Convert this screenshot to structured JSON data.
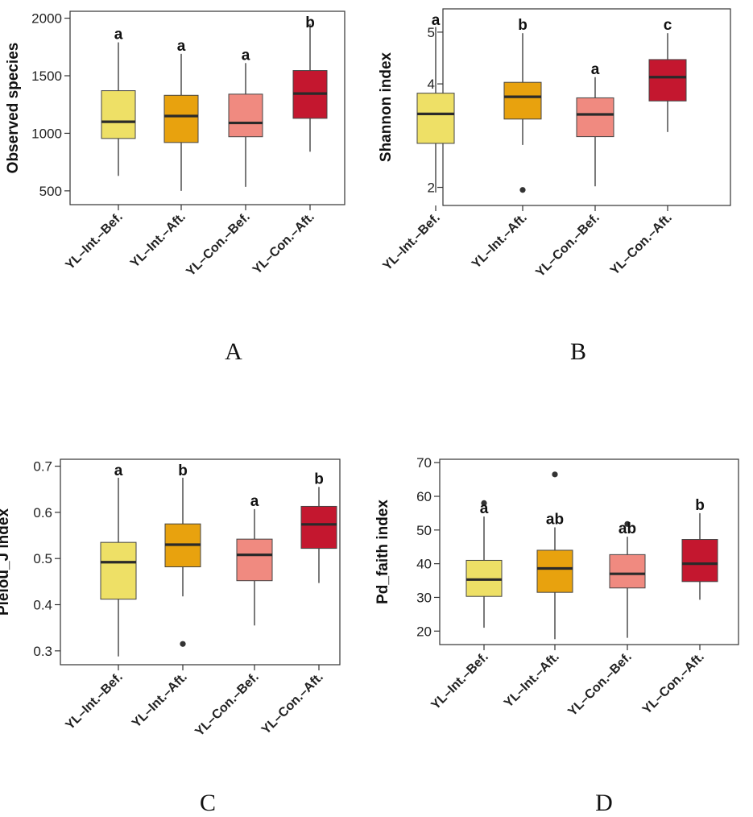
{
  "colors": [
    "#EEE066",
    "#E8A20E",
    "#F08A80",
    "#C4172F"
  ],
  "chart_data": [
    {
      "type": "box",
      "panel": "A",
      "title": "",
      "xlabel": "",
      "ylabel": "Observed species",
      "ylim": [
        380,
        2060
      ],
      "yticks": [
        500,
        1000,
        1500,
        2000
      ],
      "categories": [
        "YL–Int.–Bef.",
        "YL–Int.–Aft.",
        "YL–Con.–Bef.",
        "YL–Con.–Aft."
      ],
      "boxes": [
        {
          "min": 630,
          "q1": 955,
          "median": 1100,
          "q3": 1370,
          "max": 1790,
          "outliers": [],
          "sig": "a"
        },
        {
          "min": 500,
          "q1": 920,
          "median": 1150,
          "q3": 1330,
          "max": 1690,
          "outliers": [],
          "sig": "a"
        },
        {
          "min": 535,
          "q1": 970,
          "median": 1090,
          "q3": 1340,
          "max": 1610,
          "outliers": [],
          "sig": "a"
        },
        {
          "min": 840,
          "q1": 1130,
          "median": 1345,
          "q3": 1545,
          "max": 1950,
          "outliers": [],
          "sig": "b"
        }
      ]
    },
    {
      "type": "box",
      "panel": "B",
      "title": "",
      "xlabel": "",
      "ylabel": "Shannon index",
      "ylim": [
        1.65,
        5.45
      ],
      "yticks": [
        2,
        3,
        4,
        5
      ],
      "categories": [
        "YL–Int.–Bef.",
        "YL–Int.–Aft.",
        "YL–Con.–Bef.",
        "YL–Con.–Aft."
      ],
      "boxes": [
        {
          "min": 1.9,
          "q1": 2.85,
          "median": 3.42,
          "q3": 3.82,
          "max": 5.1,
          "outliers": [],
          "sig": "a"
        },
        {
          "min": 2.82,
          "q1": 3.32,
          "median": 3.75,
          "q3": 4.03,
          "max": 4.98,
          "outliers": [
            1.95
          ],
          "sig": "b"
        },
        {
          "min": 2.02,
          "q1": 2.98,
          "median": 3.41,
          "q3": 3.73,
          "max": 4.13,
          "outliers": [],
          "sig": "a"
        },
        {
          "min": 3.07,
          "q1": 3.67,
          "median": 4.13,
          "q3": 4.47,
          "max": 4.98,
          "outliers": [],
          "sig": "c"
        }
      ]
    },
    {
      "type": "box",
      "panel": "C",
      "title": "",
      "xlabel": "",
      "ylabel": "Pielou_J index",
      "ylim": [
        0.27,
        0.715
      ],
      "yticks": [
        0.3,
        0.4,
        0.5,
        0.6,
        0.7
      ],
      "categories": [
        "YL–Int.–Bef.",
        "YL–Int.–Aft.",
        "YL–Con.–Bef.",
        "YL–Con.–Aft."
      ],
      "boxes": [
        {
          "min": 0.288,
          "q1": 0.412,
          "median": 0.492,
          "q3": 0.535,
          "max": 0.675,
          "outliers": [],
          "sig": "a"
        },
        {
          "min": 0.418,
          "q1": 0.482,
          "median": 0.53,
          "q3": 0.575,
          "max": 0.675,
          "outliers": [
            0.315
          ],
          "sig": "b"
        },
        {
          "min": 0.355,
          "q1": 0.452,
          "median": 0.508,
          "q3": 0.542,
          "max": 0.607,
          "outliers": [],
          "sig": "a"
        },
        {
          "min": 0.447,
          "q1": 0.522,
          "median": 0.574,
          "q3": 0.613,
          "max": 0.655,
          "outliers": [],
          "sig": "b"
        }
      ]
    },
    {
      "type": "box",
      "panel": "D",
      "title": "",
      "xlabel": "",
      "ylabel": "Pd_faith index",
      "ylim": [
        16,
        71
      ],
      "yticks": [
        20,
        30,
        40,
        50,
        60,
        70
      ],
      "categories": [
        "YL–Int.–Bef.",
        "YL–Int.–Aft.",
        "YL–Con.–Bef.",
        "YL–Con.–Aft."
      ],
      "boxes": [
        {
          "min": 21,
          "q1": 30.3,
          "median": 35.3,
          "q3": 41,
          "max": 54,
          "outliers": [
            58
          ],
          "sig": "a"
        },
        {
          "min": 17.6,
          "q1": 31.5,
          "median": 38.6,
          "q3": 44,
          "max": 50.8,
          "outliers": [
            66.5
          ],
          "sig": "ab"
        },
        {
          "min": 18,
          "q1": 32.8,
          "median": 37,
          "q3": 42.7,
          "max": 48,
          "outliers": [
            51.8
          ],
          "sig": "ab"
        },
        {
          "min": 29.3,
          "q1": 34.7,
          "median": 40,
          "q3": 47.2,
          "max": 55,
          "outliers": [],
          "sig": "b"
        }
      ]
    }
  ]
}
